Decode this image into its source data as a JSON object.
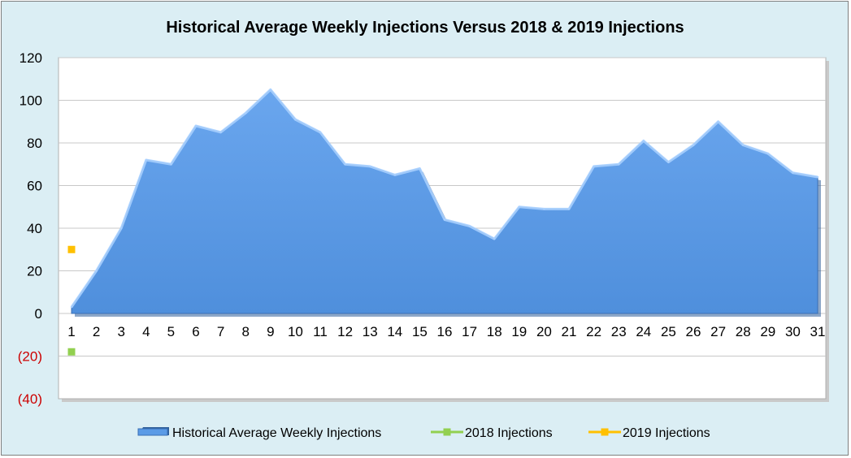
{
  "chart_data": {
    "type": "area",
    "title": "Historical Average Weekly Injections Versus 2018 & 2019 Injections",
    "categories": [
      "1",
      "2",
      "3",
      "4",
      "5",
      "6",
      "7",
      "8",
      "9",
      "10",
      "11",
      "12",
      "13",
      "14",
      "15",
      "16",
      "17",
      "18",
      "19",
      "20",
      "21",
      "22",
      "23",
      "24",
      "25",
      "26",
      "27",
      "28",
      "29",
      "30",
      "31"
    ],
    "ylim": [
      -40,
      120
    ],
    "yticks": [
      {
        "value": 120,
        "label": "120"
      },
      {
        "value": 100,
        "label": "100"
      },
      {
        "value": 80,
        "label": "80"
      },
      {
        "value": 60,
        "label": "60"
      },
      {
        "value": 40,
        "label": "40"
      },
      {
        "value": 20,
        "label": "20"
      },
      {
        "value": 0,
        "label": "0"
      },
      {
        "value": -20,
        "label": "(20)"
      },
      {
        "value": -40,
        "label": "(40)"
      }
    ],
    "grid": true,
    "legend_position": "bottom",
    "series": [
      {
        "name": "Historical Average Weekly Injections",
        "type": "area",
        "color": "#5b9be6",
        "values": [
          3,
          20,
          40,
          72,
          70,
          88,
          85,
          94,
          105,
          91,
          85,
          70,
          69,
          65,
          68,
          44,
          41,
          35,
          50,
          49,
          49,
          69,
          70,
          81,
          71,
          79,
          90,
          79,
          75,
          66,
          64
        ]
      },
      {
        "name": "2018 Injections",
        "type": "scatter",
        "color": "#92d050",
        "values": [
          -18
        ]
      },
      {
        "name": "2019 Injections",
        "type": "scatter",
        "color": "#ffc000",
        "values": [
          30
        ]
      }
    ]
  }
}
